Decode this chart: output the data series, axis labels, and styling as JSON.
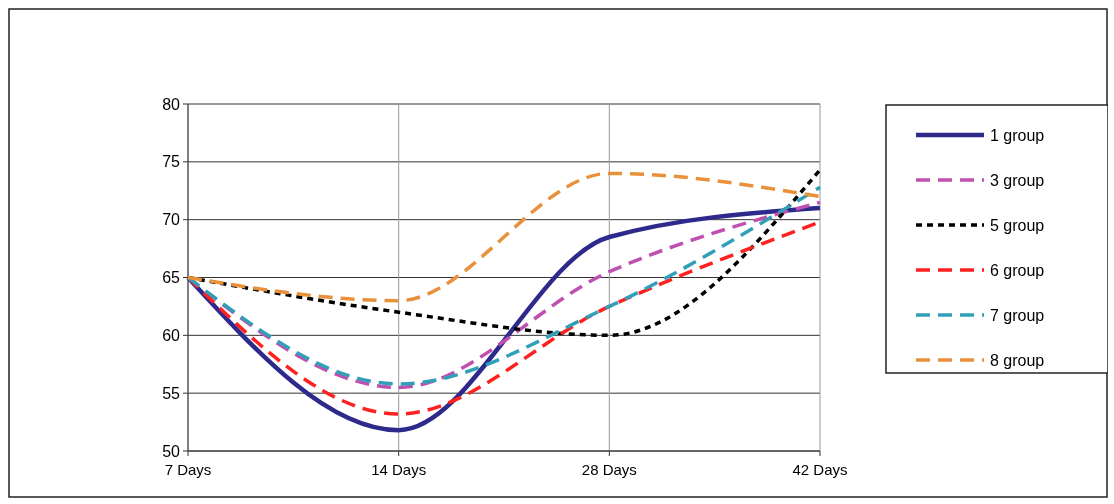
{
  "chart_data": {
    "type": "line",
    "categories": [
      "7 Days",
      "14 Days",
      "28 Days",
      "42 Days"
    ],
    "series": [
      {
        "name": "1 group",
        "color": "#2e2a8c",
        "line_style": "solid",
        "values": [
          65,
          51.8,
          68.5,
          71
        ]
      },
      {
        "name": "3 group",
        "color": "#c050b0",
        "line_style": "dashed",
        "values": [
          65,
          55.5,
          65.5,
          71.5
        ]
      },
      {
        "name": "5 group",
        "color": "#000000",
        "line_style": "dotted",
        "values": [
          65,
          62,
          60,
          74.3
        ]
      },
      {
        "name": "6 group",
        "color": "#ff2020",
        "line_style": "dashed",
        "values": [
          65,
          53.2,
          62.5,
          69.8
        ]
      },
      {
        "name": "7 group",
        "color": "#30a0b8",
        "line_style": "dashed",
        "values": [
          65,
          55.8,
          62.5,
          72.8
        ]
      },
      {
        "name": "8 group",
        "color": "#e8903a",
        "line_style": "dashed",
        "values": [
          65,
          63,
          74,
          72
        ]
      }
    ],
    "ylim": [
      50,
      80
    ],
    "yticks": [
      50,
      55,
      60,
      65,
      70,
      75,
      80
    ],
    "grid": true,
    "legend": "right",
    "marker": "none"
  }
}
